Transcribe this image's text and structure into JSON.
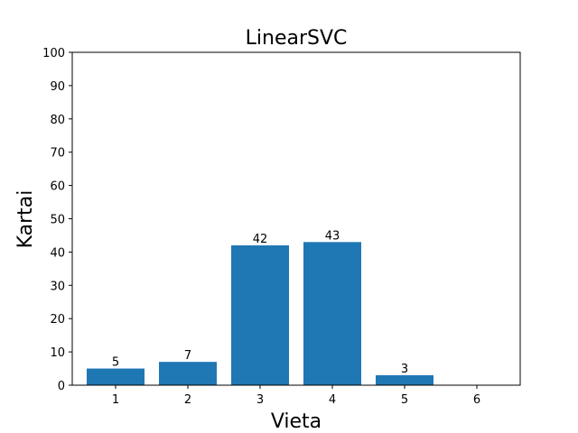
{
  "chart_data": {
    "type": "bar",
    "title": "LinearSVC",
    "xlabel": "Vieta",
    "ylabel": "Kartai",
    "categories": [
      "1",
      "2",
      "3",
      "4",
      "5",
      "6"
    ],
    "values": [
      5,
      7,
      42,
      43,
      3,
      0
    ],
    "data_labels": [
      "5",
      "7",
      "42",
      "43",
      "3",
      ""
    ],
    "ylim": [
      0,
      100
    ],
    "yticks": [
      0,
      10,
      20,
      30,
      40,
      50,
      60,
      70,
      80,
      90,
      100
    ],
    "grid": false,
    "bar_color": "#1f77b4"
  }
}
